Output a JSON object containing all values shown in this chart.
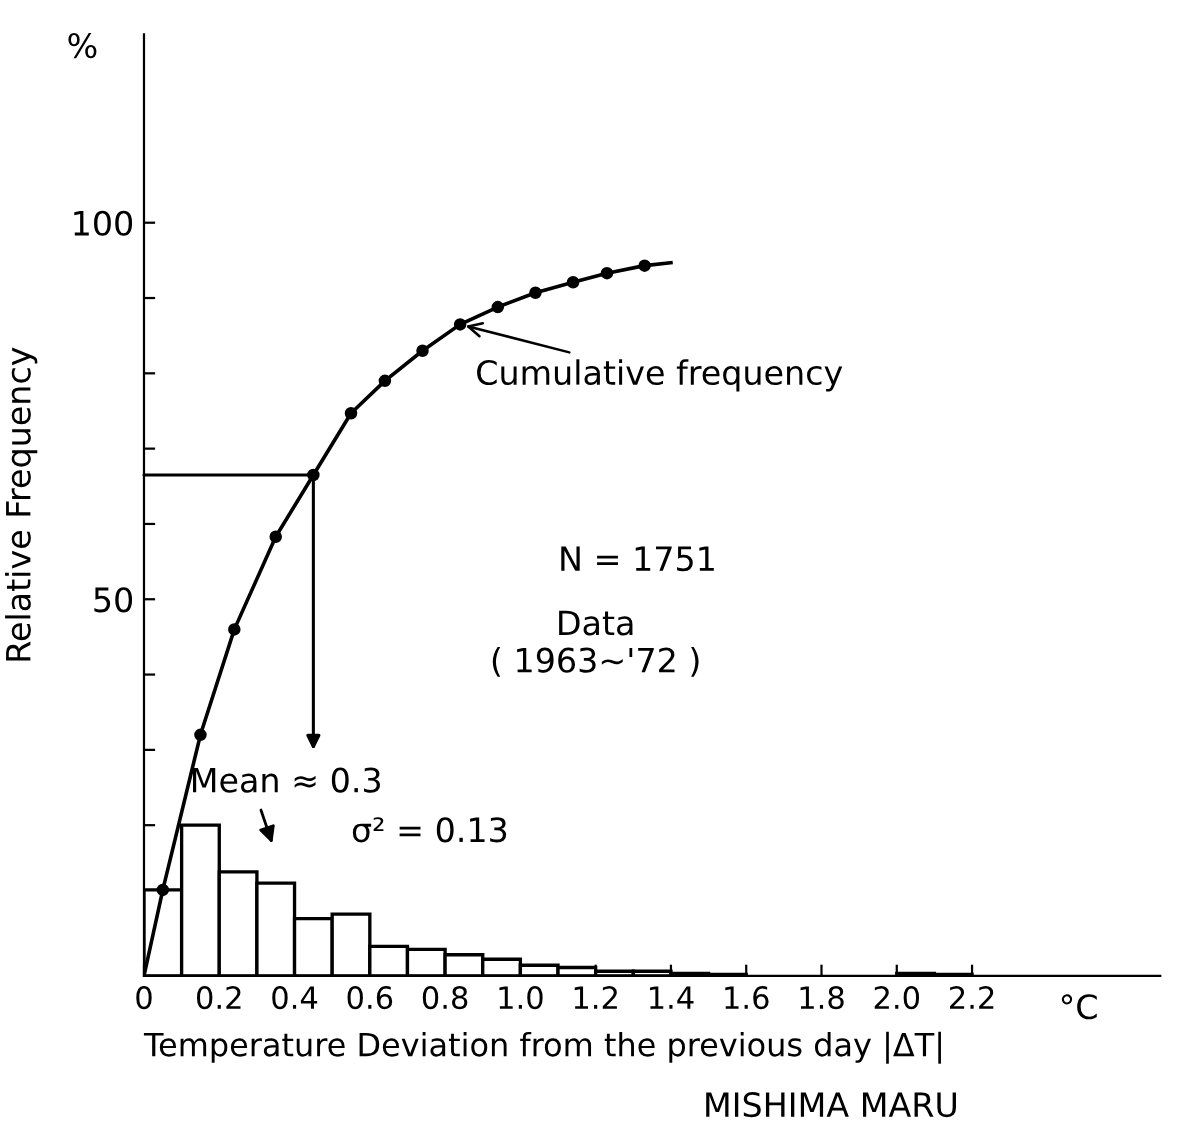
{
  "chart_data": {
    "type": "histogram",
    "xlabel": "Temperature Deviation from the previous day |ΔT|",
    "ylabel": "Relative Frequency",
    "bins": [
      0,
      0.1,
      0.2,
      0.3,
      0.4,
      0.5,
      0.6,
      0.7,
      0.8,
      0.9,
      1.0,
      1.1,
      1.2,
      1.3,
      1.4,
      1.5,
      1.6,
      1.7,
      1.8,
      1.9,
      2.0,
      2.1,
      2.2
    ],
    "values": [
      11.4,
      20,
      13.8,
      12.3,
      7.6,
      8.2,
      3.9,
      3.5,
      2.8,
      2.2,
      1.4,
      1.1,
      0.6,
      0.6,
      0.3,
      0.2,
      null,
      null,
      null,
      null,
      0.3,
      0.2
    ],
    "color": "#ffffff",
    "series": [
      {
        "name": "Cumulative frequency",
        "type": "line",
        "color": "#000000",
        "marker": "circle",
        "x": [
          0,
          0.05,
          0.15,
          0.24,
          0.35,
          0.45,
          0.55,
          0.64,
          0.74,
          0.84,
          0.94,
          1.04,
          1.14,
          1.23,
          1.33,
          1.4
        ],
        "values": [
          0,
          11.4,
          32.0,
          46.0,
          58.3,
          66.5,
          74.7,
          79.0,
          83.0,
          86.5,
          88.8,
          90.7,
          92.1,
          93.3,
          94.3,
          94.7
        ]
      }
    ],
    "annotations": [
      "Mean ≈ 0.3",
      "σ² = 0.13",
      "N = 1751",
      "Data\n( 1963~'72 )",
      "%",
      "°C",
      "MISHIMA MARU"
    ],
    "xlim": [
      0,
      2.7
    ],
    "xticks": [
      0,
      0.2,
      0.4,
      0.6,
      0.8,
      {
        "value": 1,
        "label": "1.0"
      },
      1.2,
      1.4,
      1.6,
      1.8,
      {
        "value": 2,
        "label": "2.0"
      },
      2.2
    ],
    "ylim": [
      0,
      125
    ],
    "yticks": [
      {
        "value": 10,
        "label": null
      },
      {
        "value": 20,
        "label": null
      },
      {
        "value": 30,
        "label": null
      },
      {
        "value": 40,
        "label": null
      },
      50,
      {
        "value": 60,
        "label": null
      },
      {
        "value": 70,
        "label": null
      },
      {
        "value": 80,
        "label": null
      },
      {
        "value": 90,
        "label": null
      },
      100
    ],
    "grid": false
  }
}
